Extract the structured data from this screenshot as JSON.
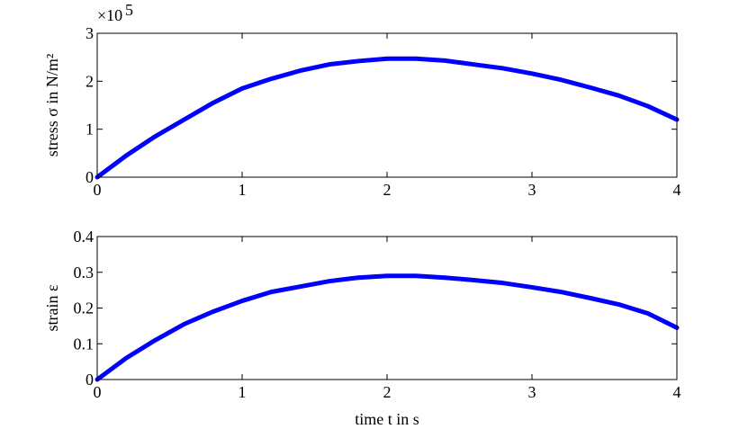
{
  "chart_data": [
    {
      "type": "line",
      "ylabel": "stress σ in N/m²",
      "y_multiplier": "×10",
      "y_multiplier_exponent": "5",
      "x": [
        0,
        0.2,
        0.4,
        0.6,
        0.8,
        1.0,
        1.2,
        1.4,
        1.6,
        1.8,
        2.0,
        2.2,
        2.4,
        2.6,
        2.8,
        3.0,
        3.2,
        3.4,
        3.6,
        3.8,
        4.0
      ],
      "series": [
        {
          "color": "#0000ff",
          "values": [
            0,
            0.45,
            0.85,
            1.2,
            1.55,
            1.85,
            2.05,
            2.22,
            2.35,
            2.42,
            2.47,
            2.47,
            2.43,
            2.35,
            2.27,
            2.16,
            2.03,
            1.87,
            1.7,
            1.48,
            1.2
          ]
        }
      ],
      "xlim": [
        0,
        4
      ],
      "xticks": [
        0,
        1,
        2,
        3,
        4
      ],
      "ylim": [
        0,
        3
      ],
      "yticks": [
        0,
        1,
        2,
        3
      ]
    },
    {
      "type": "line",
      "ylabel": "strain ε",
      "xlabel": "time t in s",
      "x": [
        0,
        0.2,
        0.4,
        0.6,
        0.8,
        1.0,
        1.2,
        1.4,
        1.6,
        1.8,
        2.0,
        2.2,
        2.4,
        2.6,
        2.8,
        3.0,
        3.2,
        3.4,
        3.6,
        3.8,
        4.0
      ],
      "series": [
        {
          "color": "#0000ff",
          "values": [
            0,
            0.06,
            0.11,
            0.155,
            0.19,
            0.22,
            0.245,
            0.26,
            0.275,
            0.285,
            0.29,
            0.29,
            0.285,
            0.278,
            0.27,
            0.258,
            0.245,
            0.228,
            0.21,
            0.185,
            0.145
          ]
        }
      ],
      "xlim": [
        0,
        4
      ],
      "xticks": [
        0,
        1,
        2,
        3,
        4
      ],
      "ylim": [
        0,
        0.4
      ],
      "yticks": [
        0,
        0.1,
        0.2,
        0.3,
        0.4
      ]
    }
  ]
}
